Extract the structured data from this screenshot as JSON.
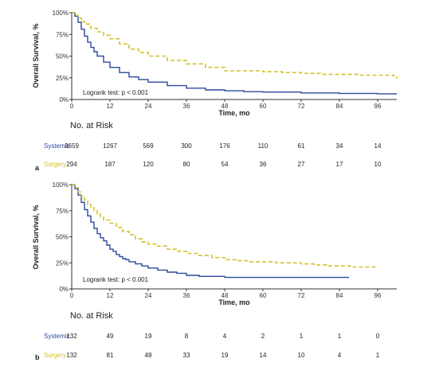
{
  "colors": {
    "systemic": "#2b4a9c",
    "surgery": "#d4c22e"
  },
  "chart_data": [
    {
      "type": "line",
      "panel": "a",
      "ylabel": "Overall Survival, %",
      "xlabel": "Time, mo",
      "yticks": [
        "0%",
        "25%",
        "50%",
        "75%",
        "100%"
      ],
      "xticks": [
        "0",
        "12",
        "24",
        "36",
        "48",
        "60",
        "72",
        "84",
        "96"
      ],
      "xlim": [
        0,
        102
      ],
      "ylim": [
        0,
        100
      ],
      "annotation": "Logrank test: p < 0.001",
      "series": [
        {
          "name": "Systemic",
          "style": "solid",
          "x": [
            0,
            1,
            2,
            3,
            4,
            5,
            6,
            7,
            8,
            10,
            12,
            15,
            18,
            21,
            24,
            30,
            36,
            42,
            48,
            54,
            60,
            72,
            84,
            96,
            102
          ],
          "y": [
            100,
            96,
            89,
            81,
            73,
            66,
            60,
            55,
            50,
            43,
            37,
            31,
            26,
            23,
            20,
            16,
            13,
            11,
            10,
            9,
            8.5,
            7.5,
            7,
            6.5,
            6.5
          ]
        },
        {
          "name": "Surgery",
          "style": "dashed",
          "x": [
            0,
            1,
            2,
            3,
            4,
            6,
            8,
            10,
            12,
            15,
            18,
            21,
            24,
            30,
            36,
            42,
            48,
            54,
            60,
            66,
            72,
            78,
            84,
            90,
            96,
            101,
            102
          ],
          "y": [
            100,
            97,
            94,
            90,
            87,
            82,
            78,
            74,
            70,
            64,
            58,
            54,
            50,
            45,
            41,
            37,
            33,
            33,
            32,
            31,
            30,
            29,
            29,
            28,
            28,
            27,
            24
          ]
        }
      ],
      "risk": {
        "title": "No. at Risk",
        "rows": [
          {
            "label": "Systemic",
            "values": [
              "3659",
              "1267",
              "569",
              "300",
              "176",
              "110",
              "61",
              "34",
              "14"
            ]
          },
          {
            "label": "Surgery",
            "values": [
              "294",
              "187",
              "120",
              "80",
              "54",
              "36",
              "27",
              "17",
              "10"
            ]
          }
        ]
      }
    },
    {
      "type": "line",
      "panel": "b",
      "ylabel": "Overall Survival, %",
      "xlabel": "Time, mo",
      "yticks": [
        "0%",
        "25%",
        "50%",
        "75%",
        "100%"
      ],
      "xticks": [
        "0",
        "12",
        "24",
        "36",
        "48",
        "60",
        "72",
        "84",
        "96"
      ],
      "xlim": [
        0,
        102
      ],
      "ylim": [
        0,
        100
      ],
      "annotation": "Logrank test: p < 0.001",
      "series": [
        {
          "name": "Systemic",
          "style": "solid",
          "x": [
            0,
            1,
            2,
            3,
            4,
            5,
            6,
            7,
            8,
            9,
            10,
            11,
            12,
            13,
            14,
            15,
            16,
            17,
            18,
            20,
            22,
            24,
            27,
            30,
            33,
            36,
            40,
            44,
            48,
            54,
            60,
            66,
            72,
            78,
            84,
            87
          ],
          "y": [
            100,
            96,
            90,
            83,
            76,
            70,
            64,
            58,
            53,
            49,
            46,
            42,
            38,
            36,
            33,
            31,
            29,
            28,
            26,
            24,
            22,
            20,
            18,
            16,
            15,
            13,
            12,
            12,
            11,
            11,
            11,
            11,
            11,
            11,
            11,
            11
          ]
        },
        {
          "name": "Surgery",
          "style": "dashed",
          "x": [
            0,
            1,
            2,
            3,
            4,
            5,
            6,
            7,
            8,
            9,
            10,
            12,
            14,
            16,
            18,
            20,
            22,
            24,
            27,
            30,
            33,
            36,
            40,
            44,
            48,
            52,
            56,
            60,
            64,
            68,
            72,
            76,
            80,
            84,
            88,
            92,
            96
          ],
          "y": [
            100,
            97,
            93,
            89,
            85,
            81,
            78,
            75,
            72,
            69,
            66,
            63,
            59,
            55,
            52,
            48,
            45,
            43,
            41,
            38,
            36,
            34,
            32,
            30,
            28,
            27,
            26,
            26,
            25,
            25,
            24,
            23,
            22,
            22,
            21,
            21,
            21
          ]
        }
      ],
      "risk": {
        "title": "No. at Risk",
        "rows": [
          {
            "label": "Systemic",
            "values": [
              "132",
              "49",
              "19",
              "8",
              "4",
              "2",
              "1",
              "1",
              "0"
            ]
          },
          {
            "label": "Surgery",
            "values": [
              "132",
              "81",
              "48",
              "33",
              "19",
              "14",
              "10",
              "4",
              "1"
            ]
          }
        ]
      }
    }
  ]
}
